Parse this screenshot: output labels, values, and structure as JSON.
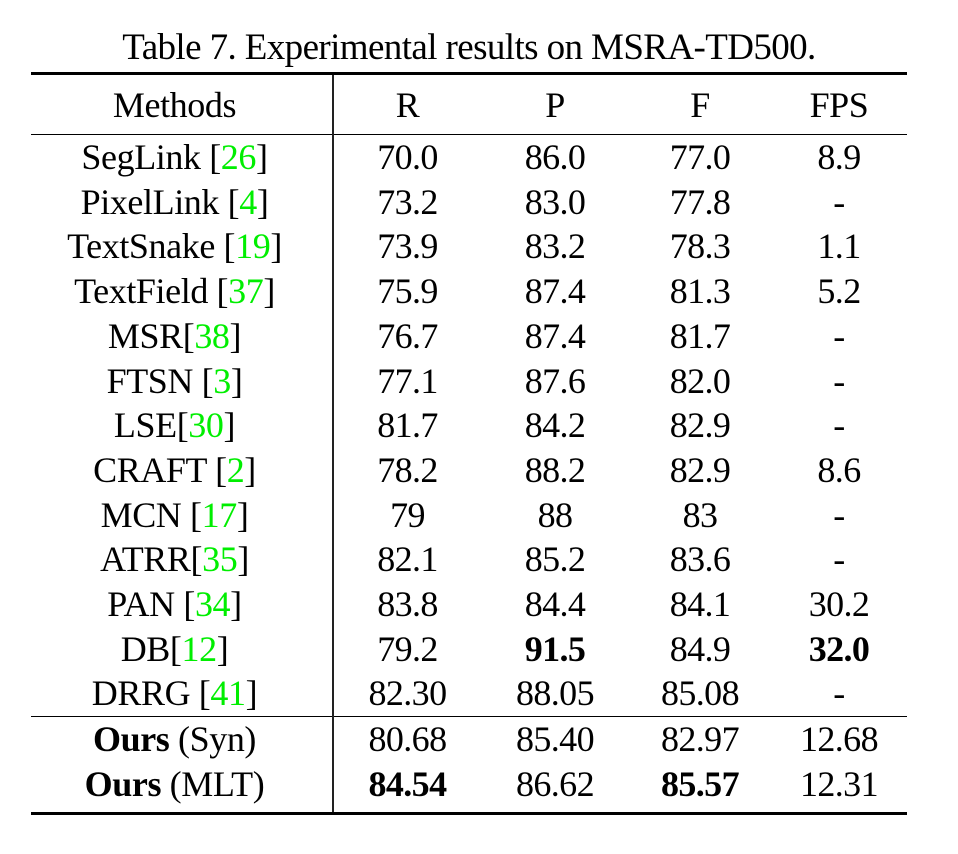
{
  "caption": "Table 7. Experimental results on MSRA-TD500.",
  "colors": {
    "citation": "#00ee00",
    "text": "#000000",
    "rules": "#000000"
  },
  "table": {
    "headers": {
      "method": "Methods",
      "r": "R",
      "p": "P",
      "f": "F",
      "fps": "FPS"
    },
    "rows": [
      {
        "name": "SegLink",
        "cite": "26",
        "space": true,
        "r": "70.0",
        "p": "86.0",
        "f": "77.0",
        "fps": "8.9"
      },
      {
        "name": "PixelLink",
        "cite": "4",
        "space": true,
        "r": "73.2",
        "p": "83.0",
        "f": "77.8",
        "fps": "-"
      },
      {
        "name": "TextSnake",
        "cite": "19",
        "space": true,
        "r": "73.9",
        "p": "83.2",
        "f": "78.3",
        "fps": "1.1"
      },
      {
        "name": "TextField",
        "cite": "37",
        "space": true,
        "r": "75.9",
        "p": "87.4",
        "f": "81.3",
        "fps": "5.2"
      },
      {
        "name": "MSR",
        "cite": "38",
        "space": false,
        "r": "76.7",
        "p": "87.4",
        "f": "81.7",
        "fps": "-"
      },
      {
        "name": "FTSN",
        "cite": "3",
        "space": true,
        "r": "77.1",
        "p": "87.6",
        "f": "82.0",
        "fps": "-"
      },
      {
        "name": "LSE",
        "cite": "30",
        "space": false,
        "r": "81.7",
        "p": "84.2",
        "f": "82.9",
        "fps": "-"
      },
      {
        "name": "CRAFT",
        "cite": "2",
        "space": true,
        "r": "78.2",
        "p": "88.2",
        "f": "82.9",
        "fps": "8.6"
      },
      {
        "name": "MCN",
        "cite": "17",
        "space": true,
        "r": "79",
        "p": "88",
        "f": "83",
        "fps": "-"
      },
      {
        "name": "ATRR",
        "cite": "35",
        "space": false,
        "r": "82.1",
        "p": "85.2",
        "f": "83.6",
        "fps": "-"
      },
      {
        "name": "PAN",
        "cite": "34",
        "space": true,
        "r": "83.8",
        "p": "84.4",
        "f": "84.1",
        "fps": "30.2"
      },
      {
        "name": "DB",
        "cite": "12",
        "space": false,
        "r": "79.2",
        "p": "91.5",
        "f": "84.9",
        "fps": "32.0",
        "bold": [
          "p",
          "fps"
        ]
      },
      {
        "name": "DRRG",
        "cite": "41",
        "space": true,
        "r": "82.30",
        "p": "88.05",
        "f": "85.08",
        "fps": "-"
      }
    ],
    "ours": [
      {
        "name_bold": "Ours",
        "variant": "(Syn)",
        "r": "80.68",
        "p": "85.40",
        "f": "82.97",
        "fps": "12.68"
      },
      {
        "name_bold": "Ours",
        "variant": "(MLT)",
        "r": "84.54",
        "p": "86.62",
        "f": "85.57",
        "fps": "12.31",
        "bold": [
          "r",
          "f"
        ]
      }
    ]
  }
}
